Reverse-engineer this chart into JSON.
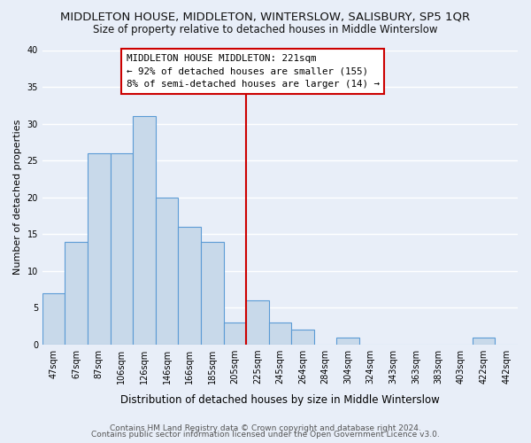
{
  "title": "MIDDLETON HOUSE, MIDDLETON, WINTERSLOW, SALISBURY, SP5 1QR",
  "subtitle": "Size of property relative to detached houses in Middle Winterslow",
  "xlabel": "Distribution of detached houses by size in Middle Winterslow",
  "ylabel": "Number of detached properties",
  "bin_labels": [
    "47sqm",
    "67sqm",
    "87sqm",
    "106sqm",
    "126sqm",
    "146sqm",
    "166sqm",
    "185sqm",
    "205sqm",
    "225sqm",
    "245sqm",
    "264sqm",
    "284sqm",
    "304sqm",
    "324sqm",
    "343sqm",
    "363sqm",
    "383sqm",
    "403sqm",
    "422sqm",
    "442sqm"
  ],
  "counts": [
    7,
    14,
    26,
    26,
    31,
    20,
    16,
    14,
    3,
    6,
    3,
    2,
    0,
    1,
    0,
    0,
    0,
    0,
    0,
    1,
    0
  ],
  "bar_color": "#c8d9ea",
  "bar_edge_color": "#5b9bd5",
  "ylim": [
    0,
    40
  ],
  "yticks": [
    0,
    5,
    10,
    15,
    20,
    25,
    30,
    35,
    40
  ],
  "vline_x_index": 8.5,
  "vline_color": "#cc0000",
  "annotation_text_line1": "MIDDLETON HOUSE MIDDLETON: 221sqm",
  "annotation_text_line2": "← 92% of detached houses are smaller (155)",
  "annotation_text_line3": "8% of semi-detached houses are larger (14) →",
  "annotation_box_color": "#ffffff",
  "annotation_box_edge_color": "#cc0000",
  "footer_line1": "Contains HM Land Registry data © Crown copyright and database right 2024.",
  "footer_line2": "Contains public sector information licensed under the Open Government Licence v3.0.",
  "background_color": "#e8eef8",
  "grid_color": "#ffffff",
  "title_fontsize": 9.5,
  "subtitle_fontsize": 8.5,
  "xlabel_fontsize": 8.5,
  "ylabel_fontsize": 8,
  "tick_fontsize": 7,
  "footer_fontsize": 6.5,
  "ann_fontsize": 7.8
}
